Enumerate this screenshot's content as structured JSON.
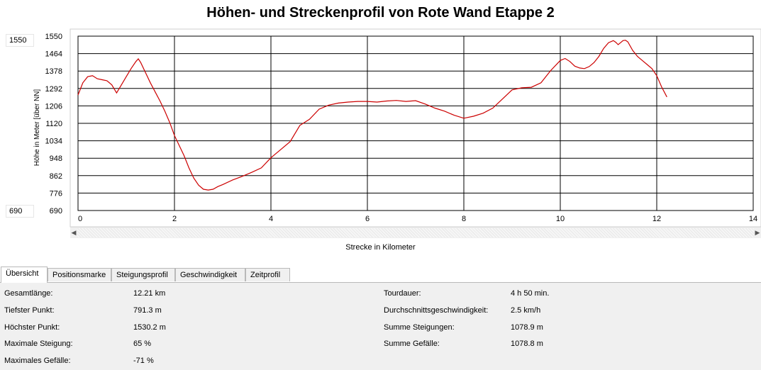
{
  "window": {
    "title": "Höhen- und Streckenprofil von Rote Wand Etappe 2"
  },
  "range": {
    "max_value": "1550",
    "min_value": "690"
  },
  "colors": {
    "line": "#cc0000",
    "grid": "#000000",
    "tab_bg": "#f0f0f0",
    "panel_bg": "#f0f0f0"
  },
  "chart_data": {
    "type": "line",
    "title": "Höhen- und Streckenprofil von Rote Wand Etappe 2",
    "xlabel": "Strecke in Kilometer",
    "ylabel": "Höhe in Meter [über NN]",
    "xlim": [
      0,
      14
    ],
    "ylim": [
      690,
      1550
    ],
    "x_ticks": [
      "0",
      "2",
      "4",
      "6",
      "8",
      "10",
      "12",
      "14"
    ],
    "y_ticks": [
      "1550",
      "1464",
      "1378",
      "1292",
      "1206",
      "1120",
      "1034",
      "948",
      "862",
      "776",
      "690"
    ],
    "grid": true,
    "series": [
      {
        "x": [
          0,
          0.1,
          0.2,
          0.3,
          0.4,
          0.5,
          0.6,
          0.7,
          0.8,
          0.9,
          1.0,
          1.1,
          1.2,
          1.25,
          1.3,
          1.4,
          1.5,
          1.6,
          1.7,
          1.8,
          1.9,
          2.0,
          2.1,
          2.2,
          2.3,
          2.4,
          2.5,
          2.6,
          2.7,
          2.8,
          2.9,
          3.0,
          3.2,
          3.4,
          3.6,
          3.8,
          4.0,
          4.2,
          4.4,
          4.6,
          4.8,
          5.0,
          5.2,
          5.4,
          5.6,
          5.8,
          6.0,
          6.2,
          6.4,
          6.6,
          6.8,
          7.0,
          7.2,
          7.4,
          7.6,
          7.8,
          8.0,
          8.2,
          8.4,
          8.6,
          8.8,
          9.0,
          9.2,
          9.4,
          9.6,
          9.8,
          10.0,
          10.1,
          10.2,
          10.3,
          10.4,
          10.5,
          10.6,
          10.7,
          10.8,
          10.9,
          11.0,
          11.1,
          11.15,
          11.2,
          11.25,
          11.3,
          11.35,
          11.4,
          11.5,
          11.6,
          11.7,
          11.8,
          11.9,
          12.0,
          12.1,
          12.21
        ],
        "y": [
          1260,
          1320,
          1350,
          1355,
          1340,
          1335,
          1330,
          1310,
          1270,
          1310,
          1350,
          1390,
          1425,
          1438,
          1420,
          1370,
          1320,
          1275,
          1230,
          1180,
          1125,
          1060,
          1010,
          960,
          900,
          850,
          815,
          795,
          791,
          795,
          808,
          818,
          840,
          858,
          878,
          900,
          950,
          990,
          1030,
          1110,
          1140,
          1190,
          1210,
          1220,
          1225,
          1228,
          1228,
          1225,
          1230,
          1233,
          1228,
          1232,
          1215,
          1195,
          1180,
          1160,
          1145,
          1155,
          1170,
          1195,
          1240,
          1285,
          1295,
          1298,
          1320,
          1380,
          1430,
          1440,
          1425,
          1402,
          1393,
          1390,
          1400,
          1420,
          1450,
          1490,
          1518,
          1528,
          1520,
          1508,
          1518,
          1528,
          1530,
          1522,
          1480,
          1450,
          1430,
          1410,
          1390,
          1355,
          1300,
          1250
        ]
      }
    ]
  },
  "tabs": [
    {
      "label": "Übersicht",
      "active": true
    },
    {
      "label": "Positionsmarke",
      "active": false
    },
    {
      "label": "Steigungsprofil",
      "active": false
    },
    {
      "label": "Geschwindigkeit",
      "active": false
    },
    {
      "label": "Zeitprofil",
      "active": false
    }
  ],
  "stats_left": [
    {
      "label": "Gesamtlänge:",
      "value": "12.21 km"
    },
    {
      "label": "Tiefster Punkt:",
      "value": "791.3 m"
    },
    {
      "label": "Höchster Punkt:",
      "value": "1530.2 m"
    },
    {
      "label": "Maximale Steigung:",
      "value": "65 %"
    },
    {
      "label": "Maximales Gefälle:",
      "value": "-71 %"
    }
  ],
  "stats_right": [
    {
      "label": "Tourdauer:",
      "value": "4 h 50 min."
    },
    {
      "label": "Durchschnittsgeschwindigkeit:",
      "value": "2.5 km/h"
    },
    {
      "label": "Summe Steigungen:",
      "value": "1078.9 m"
    },
    {
      "label": "Summe Gefälle:",
      "value": "1078.8 m"
    }
  ]
}
